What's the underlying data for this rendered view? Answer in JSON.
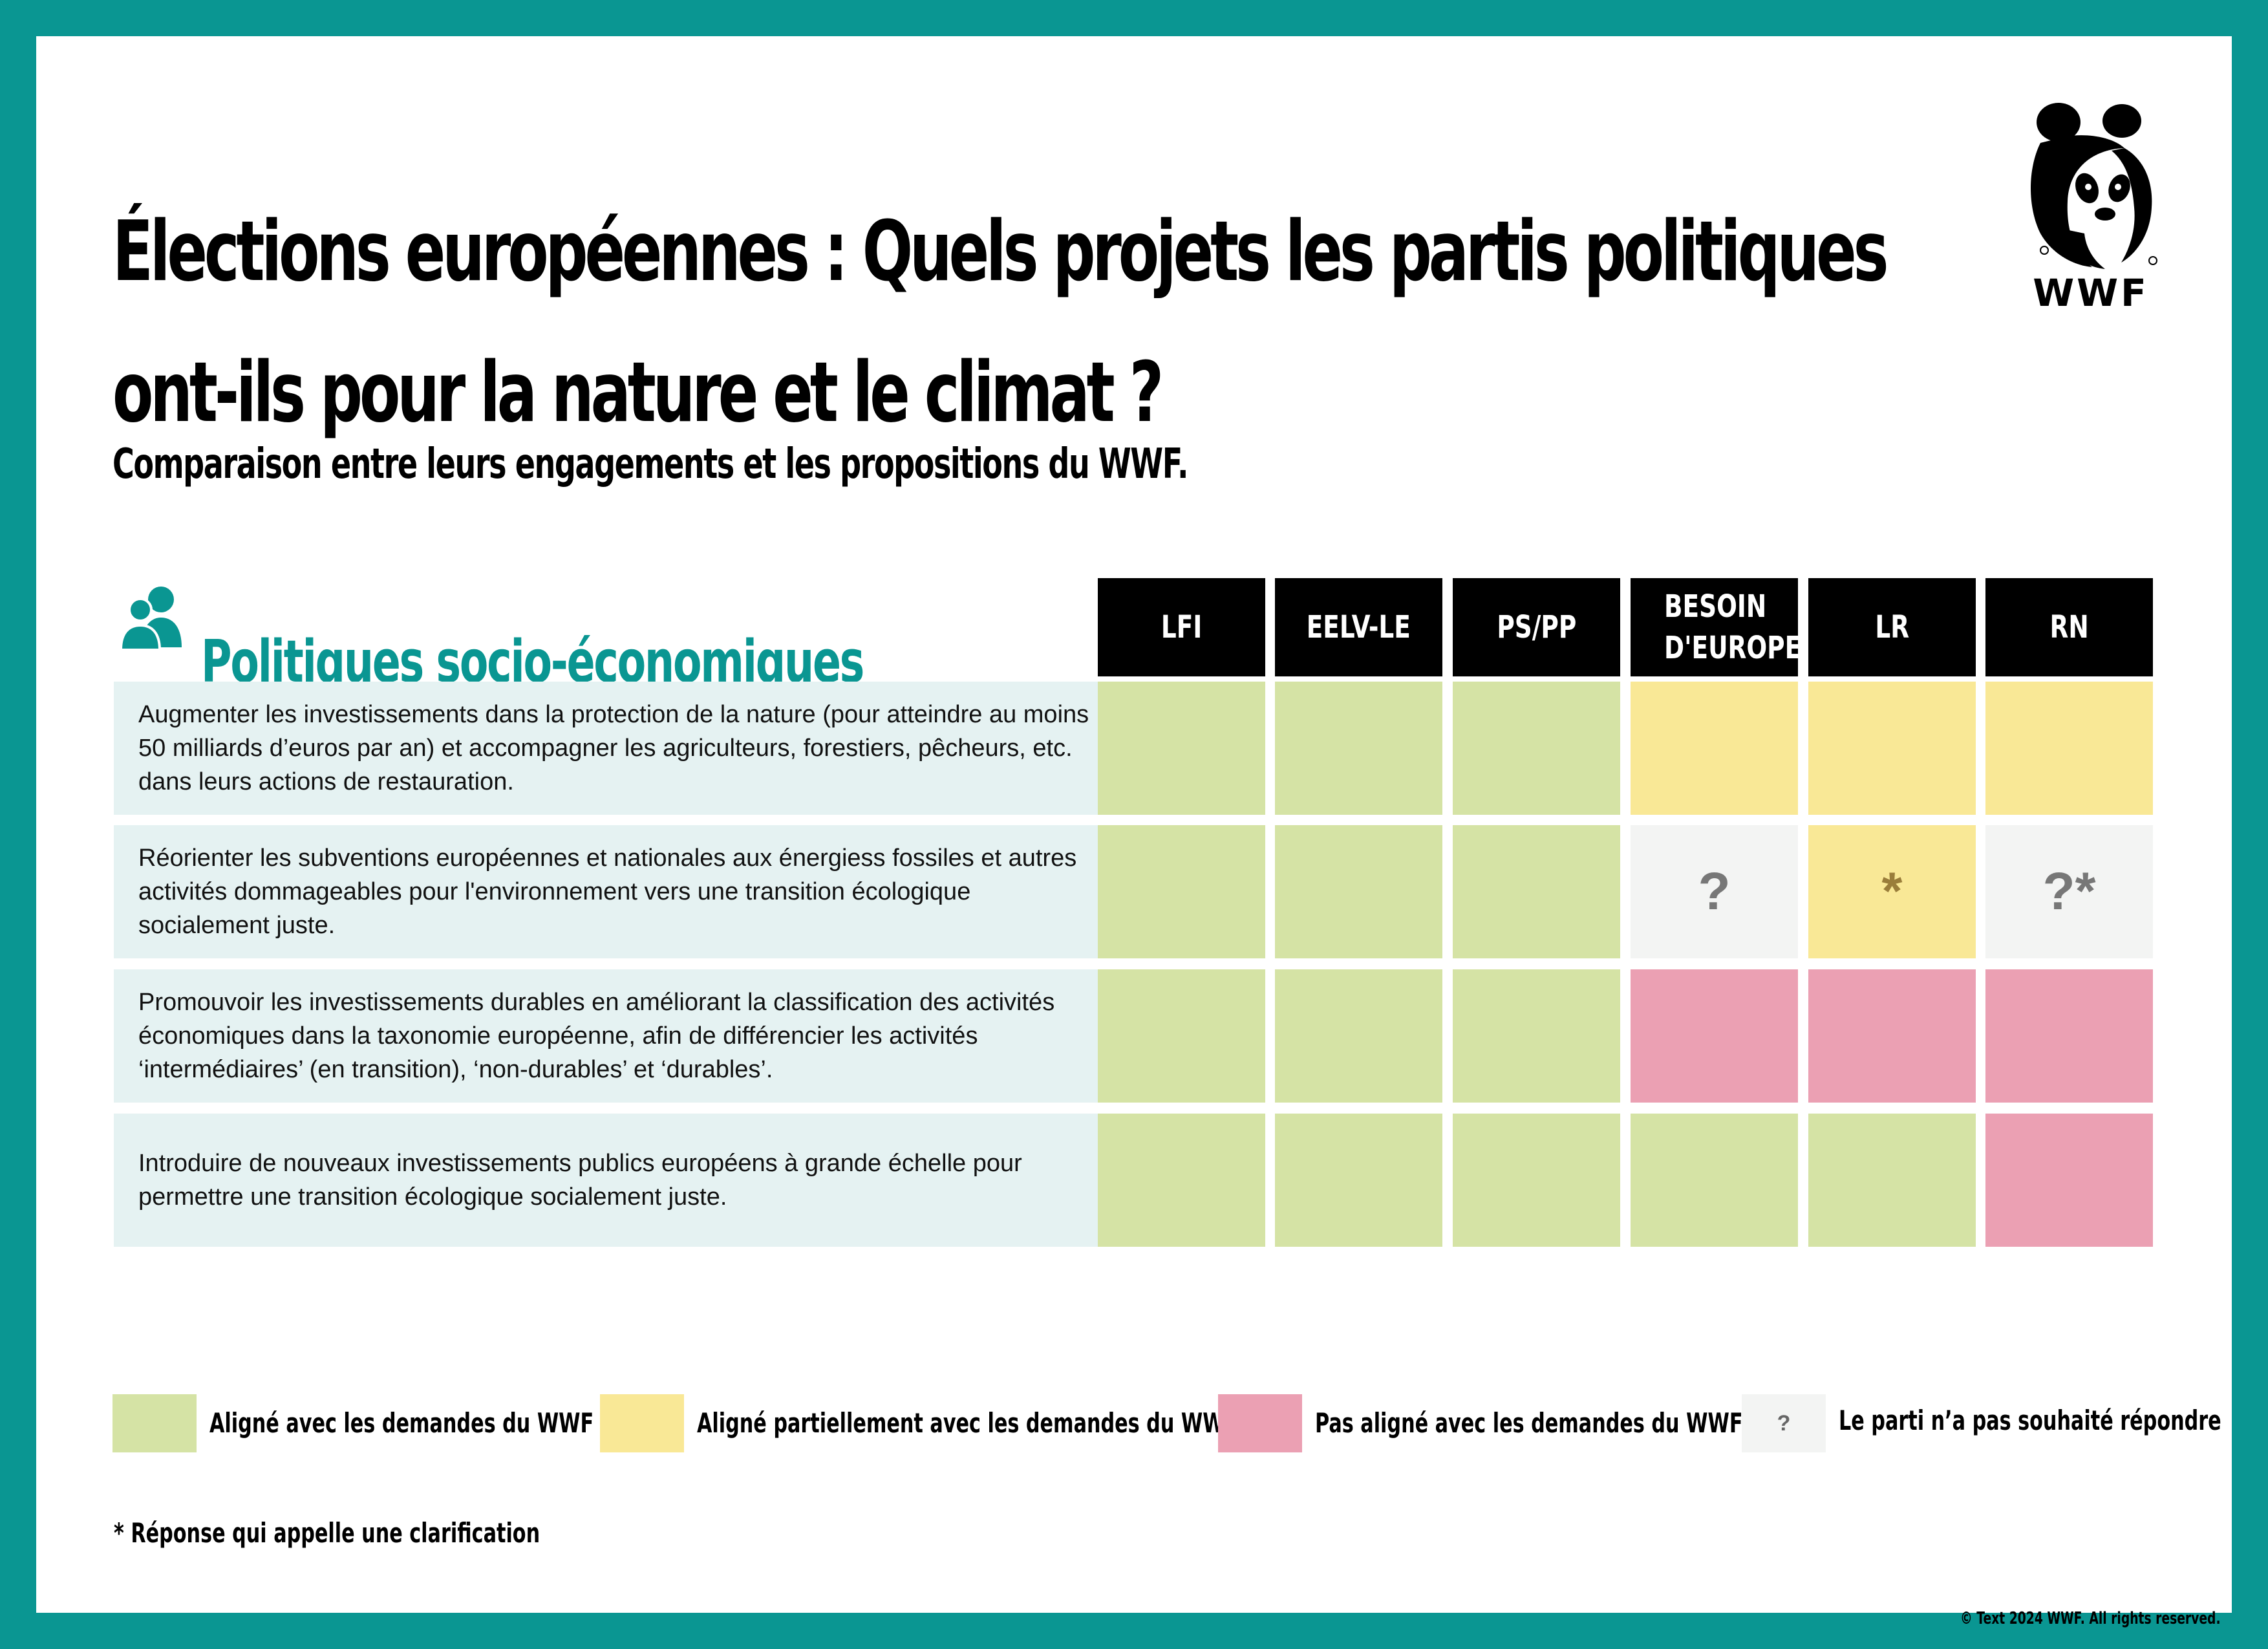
{
  "title": {
    "line1": "Élections européennes : Quels projets les partis politiques",
    "line2": "ont-ils pour la nature et le climat ?"
  },
  "subtitle": "Comparaison entre leurs engagements et les propositions du WWF.",
  "logo": {
    "text": "WWF",
    "icon": "panda-logo"
  },
  "section": {
    "title": "Politiques socio-économiques",
    "icon": "people-icon"
  },
  "colors": {
    "aligned": "#d5e3a5",
    "partial": "#f9e896",
    "not_aligned": "#eba0b3",
    "no_answer": "#f3f4f3",
    "teal": "#0a9692",
    "row_bg": "#e5f2f2"
  },
  "table": {
    "columns": [
      "LFI",
      "EELV-LE",
      "PS/PP",
      "BESOIN D'EUROPE",
      "LR",
      "RN"
    ],
    "rows": [
      {
        "label": "Augmenter les investissements dans la protection de la nature (pour atteindre au moins 50 milliards d’euros par an) et accompagner les agriculteurs, forestiers, pêcheurs, etc. dans leurs actions de restauration.",
        "cells": [
          {
            "status": "aligned",
            "mark": ""
          },
          {
            "status": "aligned",
            "mark": ""
          },
          {
            "status": "aligned",
            "mark": ""
          },
          {
            "status": "partial",
            "mark": ""
          },
          {
            "status": "partial",
            "mark": ""
          },
          {
            "status": "partial",
            "mark": ""
          }
        ]
      },
      {
        "label": "Réorienter les subventions européennes et nationales aux énergiess fossiles et autres activités dommageables pour l'environnement vers une transition écologique socialement juste.",
        "cells": [
          {
            "status": "aligned",
            "mark": ""
          },
          {
            "status": "aligned",
            "mark": ""
          },
          {
            "status": "aligned",
            "mark": ""
          },
          {
            "status": "no_answer",
            "mark": "?"
          },
          {
            "status": "partial",
            "mark": "*"
          },
          {
            "status": "no_answer",
            "mark": "?*"
          }
        ]
      },
      {
        "label": "Promouvoir les investissements durables en améliorant  la classification des activités économiques dans la taxonomie européenne, afin de différencier les activités  ‘intermédiaires’ (en transition), ‘non-durables’ et ‘durables’.",
        "cells": [
          {
            "status": "aligned",
            "mark": ""
          },
          {
            "status": "aligned",
            "mark": ""
          },
          {
            "status": "aligned",
            "mark": ""
          },
          {
            "status": "not_aligned",
            "mark": ""
          },
          {
            "status": "not_aligned",
            "mark": ""
          },
          {
            "status": "not_aligned",
            "mark": ""
          }
        ]
      },
      {
        "label": "Introduire de nouveaux investissements publics européens à grande échelle pour permettre une transition écologique socialement juste.",
        "cells": [
          {
            "status": "aligned",
            "mark": ""
          },
          {
            "status": "aligned",
            "mark": ""
          },
          {
            "status": "aligned",
            "mark": ""
          },
          {
            "status": "aligned",
            "mark": ""
          },
          {
            "status": "aligned",
            "mark": ""
          },
          {
            "status": "not_aligned",
            "mark": ""
          }
        ]
      }
    ]
  },
  "legend": {
    "aligned": "Aligné avec les demandes du WWF",
    "partial": "Aligné partiellement avec les demandes du WWF",
    "not_aligned": "Pas aligné avec les demandes du WWF",
    "no_answer": "Le parti n’a pas souhaité répondre",
    "no_answer_mark": "?"
  },
  "footnote": "* Réponse qui appelle une clarification",
  "copyright": "© Text 2024 WWF. All rights reserved."
}
